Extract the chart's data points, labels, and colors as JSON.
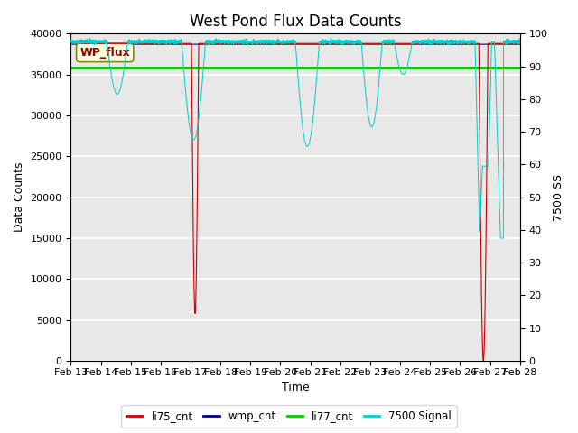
{
  "title": "West Pond Flux Data Counts",
  "xlabel": "Time",
  "ylabel_left": "Data Counts",
  "ylabel_right": "7500 SS",
  "annotation_text": "WP_flux",
  "xlim_days": [
    0,
    15
  ],
  "ylim_left": [
    0,
    40000
  ],
  "ylim_right": [
    0,
    100
  ],
  "xtick_labels": [
    "Feb 13",
    "Feb 14",
    "Feb 15",
    "Feb 16",
    "Feb 17",
    "Feb 18",
    "Feb 19",
    "Feb 20",
    "Feb 21",
    "Feb 22",
    "Feb 23",
    "Feb 24",
    "Feb 25",
    "Feb 26",
    "Feb 27",
    "Feb 28"
  ],
  "bg_color": "#e8e8e8",
  "li77_level": 35800,
  "li75_color": "#cc0000",
  "wmp_color": "#00008b",
  "li77_color": "#00cc00",
  "signal_color": "#00cccc",
  "title_fontsize": 12,
  "axis_label_fontsize": 9,
  "tick_fontsize": 8,
  "figsize": [
    6.4,
    4.8
  ],
  "dpi": 100
}
